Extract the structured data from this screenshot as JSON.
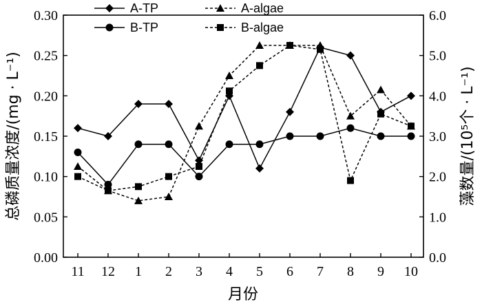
{
  "chart_data": {
    "type": "line",
    "xlabel": "月份",
    "ylabel_left": "总磷质量浓度/(mg · L⁻¹)",
    "ylabel_right": "藻数量/(10⁵个 · L⁻¹)",
    "categories": [
      "11",
      "12",
      "1",
      "2",
      "3",
      "4",
      "5",
      "6",
      "7",
      "8",
      "9",
      "10"
    ],
    "ylim_left": [
      0.0,
      0.3
    ],
    "ylim_right": [
      0.0,
      6.0
    ],
    "yticks_left": [
      "0.00",
      "0.05",
      "0.10",
      "0.15",
      "0.20",
      "0.25",
      "0.30"
    ],
    "yticks_right": [
      "0.0",
      "1.0",
      "2.0",
      "3.0",
      "4.0",
      "5.0",
      "6.0"
    ],
    "legend_position": "top",
    "series": [
      {
        "name": "A-TP",
        "axis": "left",
        "marker": "diamond",
        "line": "solid",
        "values": [
          0.16,
          0.15,
          0.19,
          0.19,
          0.12,
          0.2,
          0.11,
          0.18,
          0.26,
          0.25,
          0.18,
          0.2
        ]
      },
      {
        "name": "B-TP",
        "axis": "left",
        "marker": "circle",
        "line": "solid",
        "values": [
          0.13,
          0.09,
          0.14,
          0.14,
          0.1,
          0.14,
          0.14,
          0.15,
          0.15,
          0.16,
          0.15,
          0.15
        ]
      },
      {
        "name": "A-algae",
        "axis": "right",
        "marker": "triangle",
        "line": "dashed",
        "values": [
          2.25,
          1.65,
          1.4,
          1.5,
          3.25,
          4.5,
          5.25,
          5.25,
          5.25,
          3.5,
          4.15,
          3.25
        ]
      },
      {
        "name": "B-algae",
        "axis": "right",
        "marker": "square",
        "line": "dashed",
        "values": [
          2.0,
          1.65,
          1.75,
          2.0,
          2.25,
          4.12,
          4.75,
          5.25,
          5.15,
          1.9,
          3.55,
          3.25
        ]
      }
    ]
  }
}
